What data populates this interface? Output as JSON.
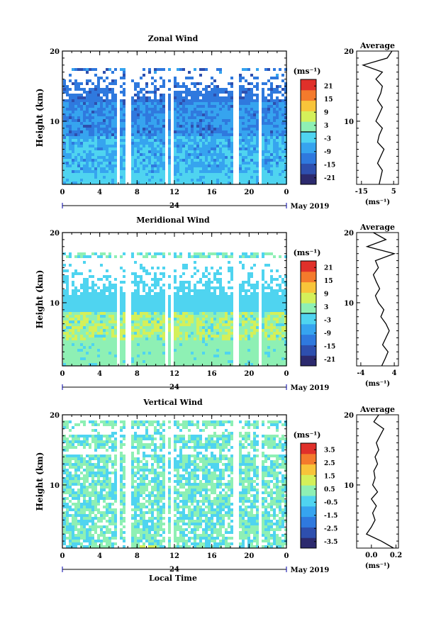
{
  "chart_data": [
    {
      "type": "heatmap",
      "title": "Zonal Wind",
      "ylabel": "Height (km)",
      "yticks": [
        "20",
        "10"
      ],
      "xticks": [
        "0",
        "4",
        "8",
        "12",
        "16",
        "20",
        "0"
      ],
      "date_mark": "24",
      "month_label": "May 2019",
      "unit_label": "(ms⁻¹)",
      "cbar_ticks": [
        "21",
        "15",
        "9",
        "3",
        "-3",
        "-9",
        "-15",
        "-21"
      ],
      "cbar_range": [
        -24,
        24
      ],
      "palette": [
        "#2c2a6e",
        "#2e4fae",
        "#2f79de",
        "#36a4ef",
        "#4fd4f0",
        "#8ef0b4",
        "#d4f05a",
        "#f8c43a",
        "#f47a2c",
        "#e0302a"
      ],
      "zero_line": 0,
      "xlim": [
        0,
        24
      ],
      "ylim": [
        1,
        20
      ],
      "profile": {
        "title": "Average",
        "xticks": [
          "-15",
          "5"
        ],
        "xlim": [
          -18,
          8
        ],
        "xlabel": "(ms⁻¹)",
        "yticks": [
          "20",
          "10"
        ],
        "heights": [
          1,
          2,
          3,
          4,
          5,
          6,
          7,
          8,
          9,
          10,
          11,
          12,
          13,
          14,
          15,
          16,
          17,
          18,
          19,
          20
        ],
        "values": [
          -4,
          -3,
          -2,
          -5,
          -3,
          -1,
          -5,
          -4,
          -2,
          -6,
          -4,
          -2,
          -5,
          -3,
          -2,
          -6,
          -2,
          -14,
          1,
          4
        ]
      },
      "gaps_hours": [
        5.8,
        7.0,
        11.0,
        11.6,
        18.5,
        21.0
      ]
    },
    {
      "type": "heatmap",
      "title": "Meridional Wind",
      "ylabel": "Height (km)",
      "yticks": [
        "20",
        "10"
      ],
      "xticks": [
        "0",
        "4",
        "8",
        "12",
        "16",
        "20",
        "0"
      ],
      "date_mark": "24",
      "month_label": "May 2019",
      "unit_label": "(ms⁻¹)",
      "cbar_ticks": [
        "21",
        "15",
        "9",
        "3",
        "-3",
        "-9",
        "-15",
        "-21"
      ],
      "cbar_range": [
        -24,
        24
      ],
      "palette": [
        "#2c2a6e",
        "#2e4fae",
        "#2f79de",
        "#36a4ef",
        "#4fd4f0",
        "#8ef0b4",
        "#d4f05a",
        "#f8c43a",
        "#f47a2c",
        "#e0302a"
      ],
      "zero_line": 0,
      "xlim": [
        0,
        24
      ],
      "ylim": [
        1,
        20
      ],
      "profile": {
        "title": "Average",
        "xticks": [
          "-4",
          "4"
        ],
        "xlim": [
          -5,
          5
        ],
        "xlabel": "(ms⁻¹)",
        "yticks": [
          "20",
          "10"
        ],
        "heights": [
          1,
          2,
          3,
          4,
          5,
          6,
          7,
          8,
          9,
          10,
          11,
          12,
          13,
          14,
          15,
          16,
          17,
          18,
          19,
          20
        ],
        "values": [
          1.0,
          1.8,
          2.5,
          1.2,
          2.0,
          2.8,
          2.0,
          0.8,
          1.5,
          0.2,
          -0.5,
          0.5,
          -0.3,
          -1.0,
          0.2,
          -0.5,
          4.0,
          -2.5,
          2.0,
          -1.0
        ]
      },
      "gaps_hours": [
        5.8,
        7.0,
        11.0,
        11.6,
        18.5,
        21.0
      ]
    },
    {
      "type": "heatmap",
      "title": "Vertical Wind",
      "ylabel": "Height (km)",
      "yticks": [
        "20",
        "10"
      ],
      "xticks": [
        "0",
        "4",
        "8",
        "12",
        "16",
        "20",
        "0"
      ],
      "date_mark": "24",
      "month_label": "May 2019",
      "xlabel": "Local Time",
      "unit_label": "(ms⁻¹)",
      "cbar_ticks": [
        "3.5",
        "2.5",
        "1.5",
        "0.5",
        "-0.5",
        "-1.5",
        "-2.5",
        "-3.5"
      ],
      "cbar_range": [
        -4,
        4
      ],
      "palette": [
        "#2c2a6e",
        "#2e4fae",
        "#2f79de",
        "#36a4ef",
        "#4fd4f0",
        "#8ef0b4",
        "#d4f05a",
        "#f8c43a",
        "#f47a2c",
        "#e0302a"
      ],
      "xlim": [
        0,
        24
      ],
      "ylim": [
        1,
        20
      ],
      "profile": {
        "title": "Average",
        "xticks": [
          "0.0",
          "0.2"
        ],
        "xlim": [
          -0.12,
          0.22
        ],
        "xlabel": "(ms⁻¹)",
        "yticks": [
          "20",
          "10"
        ],
        "heights": [
          1,
          2,
          3,
          4,
          5,
          6,
          7,
          8,
          9,
          10,
          11,
          12,
          13,
          14,
          15,
          16,
          17,
          18,
          19,
          20
        ],
        "values": [
          0.18,
          0.08,
          -0.04,
          0.0,
          0.03,
          0.01,
          0.04,
          0.0,
          0.05,
          0.01,
          0.03,
          0.02,
          0.05,
          0.03,
          0.06,
          0.04,
          0.07,
          0.1,
          0.02,
          0.06
        ]
      },
      "gaps_hours": [
        5.8,
        7.0,
        11.0,
        11.6,
        18.5,
        21.0
      ]
    }
  ]
}
